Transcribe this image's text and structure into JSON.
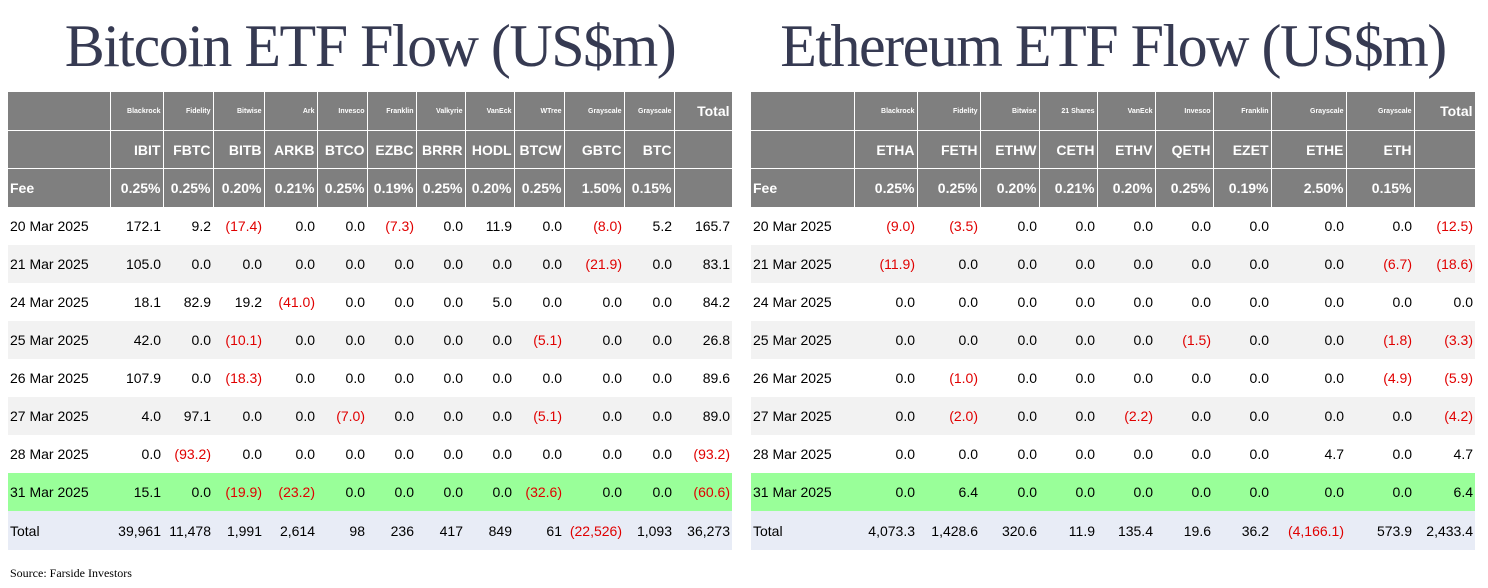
{
  "btc": {
    "title": "Bitcoin ETF Flow (US$m)",
    "issuers": [
      "Blackrock",
      "Fidelity",
      "Bitwise",
      "Ark",
      "Invesco",
      "Franklin",
      "Valkyrie",
      "VanEck",
      "WTree",
      "Grayscale",
      "Grayscale"
    ],
    "total_label": "Total",
    "tickers": [
      "IBIT",
      "FBTC",
      "BITB",
      "ARKB",
      "BTCO",
      "EZBC",
      "BRRR",
      "HODL",
      "BTCW",
      "GBTC",
      "BTC"
    ],
    "fee_label": "Fee",
    "fees": [
      "0.25%",
      "0.25%",
      "0.20%",
      "0.21%",
      "0.25%",
      "0.19%",
      "0.25%",
      "0.20%",
      "0.25%",
      "1.50%",
      "0.15%"
    ],
    "rows": [
      {
        "date": "20 Mar 2025",
        "values": [
          "172.1",
          "9.2",
          "(17.4)",
          "0.0",
          "0.0",
          "(7.3)",
          "0.0",
          "11.9",
          "0.0",
          "(8.0)",
          "5.2"
        ],
        "total": "165.7"
      },
      {
        "date": "21 Mar 2025",
        "values": [
          "105.0",
          "0.0",
          "0.0",
          "0.0",
          "0.0",
          "0.0",
          "0.0",
          "0.0",
          "0.0",
          "(21.9)",
          "0.0"
        ],
        "total": "83.1"
      },
      {
        "date": "24 Mar 2025",
        "values": [
          "18.1",
          "82.9",
          "19.2",
          "(41.0)",
          "0.0",
          "0.0",
          "0.0",
          "5.0",
          "0.0",
          "0.0",
          "0.0"
        ],
        "total": "84.2"
      },
      {
        "date": "25 Mar 2025",
        "values": [
          "42.0",
          "0.0",
          "(10.1)",
          "0.0",
          "0.0",
          "0.0",
          "0.0",
          "0.0",
          "(5.1)",
          "0.0",
          "0.0"
        ],
        "total": "26.8"
      },
      {
        "date": "26 Mar 2025",
        "values": [
          "107.9",
          "0.0",
          "(18.3)",
          "0.0",
          "0.0",
          "0.0",
          "0.0",
          "0.0",
          "0.0",
          "0.0",
          "0.0"
        ],
        "total": "89.6"
      },
      {
        "date": "27 Mar 2025",
        "values": [
          "4.0",
          "97.1",
          "0.0",
          "0.0",
          "(7.0)",
          "0.0",
          "0.0",
          "0.0",
          "(5.1)",
          "0.0",
          "0.0"
        ],
        "total": "89.0"
      },
      {
        "date": "28 Mar 2025",
        "values": [
          "0.0",
          "(93.2)",
          "0.0",
          "0.0",
          "0.0",
          "0.0",
          "0.0",
          "0.0",
          "0.0",
          "0.0",
          "0.0"
        ],
        "total": "(93.2)"
      },
      {
        "date": "31 Mar 2025",
        "values": [
          "15.1",
          "0.0",
          "(19.9)",
          "(23.2)",
          "0.0",
          "0.0",
          "0.0",
          "0.0",
          "(32.6)",
          "0.0",
          "0.0"
        ],
        "total": "(60.6)",
        "highlight": true
      }
    ],
    "totals_row": {
      "label": "Total",
      "values": [
        "39,961",
        "11,478",
        "1,991",
        "2,614",
        "98",
        "236",
        "417",
        "849",
        "61",
        "(22,526)",
        "1,093"
      ],
      "total": "36,273"
    }
  },
  "eth": {
    "title": "Ethereum ETF Flow (US$m)",
    "issuers": [
      "Blackrock",
      "Fidelity",
      "Bitwise",
      "21 Shares",
      "VanEck",
      "Invesco",
      "Franklin",
      "Grayscale",
      "Grayscale"
    ],
    "total_label": "Total",
    "tickers": [
      "ETHA",
      "FETH",
      "ETHW",
      "CETH",
      "ETHV",
      "QETH",
      "EZET",
      "ETHE",
      "ETH"
    ],
    "fee_label": "Fee",
    "fees": [
      "0.25%",
      "0.25%",
      "0.20%",
      "0.21%",
      "0.20%",
      "0.25%",
      "0.19%",
      "2.50%",
      "0.15%"
    ],
    "rows": [
      {
        "date": "20 Mar 2025",
        "values": [
          "(9.0)",
          "(3.5)",
          "0.0",
          "0.0",
          "0.0",
          "0.0",
          "0.0",
          "0.0",
          "0.0"
        ],
        "total": "(12.5)"
      },
      {
        "date": "21 Mar 2025",
        "values": [
          "(11.9)",
          "0.0",
          "0.0",
          "0.0",
          "0.0",
          "0.0",
          "0.0",
          "0.0",
          "(6.7)"
        ],
        "total": "(18.6)"
      },
      {
        "date": "24 Mar 2025",
        "values": [
          "0.0",
          "0.0",
          "0.0",
          "0.0",
          "0.0",
          "0.0",
          "0.0",
          "0.0",
          "0.0"
        ],
        "total": "0.0"
      },
      {
        "date": "25 Mar 2025",
        "values": [
          "0.0",
          "0.0",
          "0.0",
          "0.0",
          "0.0",
          "(1.5)",
          "0.0",
          "0.0",
          "(1.8)"
        ],
        "total": "(3.3)"
      },
      {
        "date": "26 Mar 2025",
        "values": [
          "0.0",
          "(1.0)",
          "0.0",
          "0.0",
          "0.0",
          "0.0",
          "0.0",
          "0.0",
          "(4.9)"
        ],
        "total": "(5.9)"
      },
      {
        "date": "27 Mar 2025",
        "values": [
          "0.0",
          "(2.0)",
          "0.0",
          "0.0",
          "(2.2)",
          "0.0",
          "0.0",
          "0.0",
          "0.0"
        ],
        "total": "(4.2)"
      },
      {
        "date": "28 Mar 2025",
        "values": [
          "0.0",
          "0.0",
          "0.0",
          "0.0",
          "0.0",
          "0.0",
          "0.0",
          "4.7",
          "0.0"
        ],
        "total": "4.7"
      },
      {
        "date": "31 Mar 2025",
        "values": [
          "0.0",
          "6.4",
          "0.0",
          "0.0",
          "0.0",
          "0.0",
          "0.0",
          "0.0",
          "0.0"
        ],
        "total": "6.4",
        "highlight": true
      }
    ],
    "totals_row": {
      "label": "Total",
      "values": [
        "4,073.3",
        "1,428.6",
        "320.6",
        "11.9",
        "135.4",
        "19.6",
        "36.2",
        "(4,166.1)",
        "573.9"
      ],
      "total": "2,433.4"
    }
  },
  "source": "Source: Farside Investors",
  "colors": {
    "title": "#363a52",
    "header_bg": "#7f7f7f",
    "row_alt": "#f2f2f2",
    "highlight": "#99ff99",
    "totals_bg": "#e8ecf6",
    "negative": "#e00000"
  }
}
